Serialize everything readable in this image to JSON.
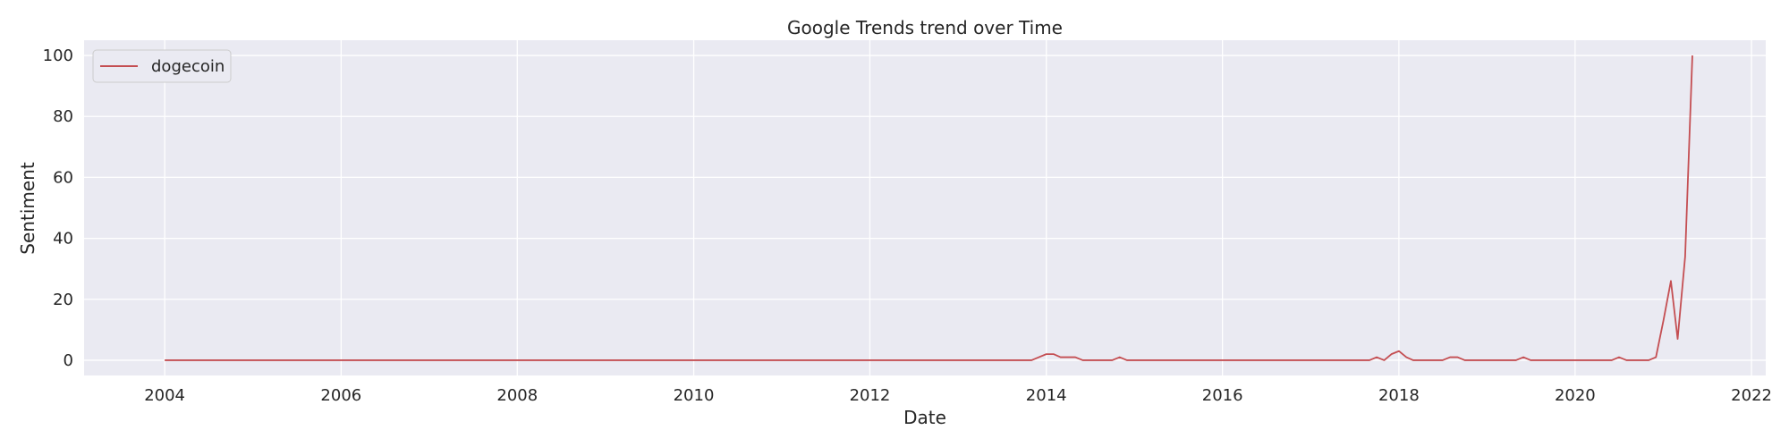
{
  "chart_data": {
    "type": "line",
    "title": "Google Trends trend over Time",
    "xlabel": "Date",
    "ylabel": "Sentiment",
    "xlim": [
      "2003-02-01",
      "2022-03-01"
    ],
    "ylim": [
      -5,
      105
    ],
    "x_ticks": [
      "2004",
      "2006",
      "2008",
      "2010",
      "2012",
      "2014",
      "2016",
      "2018",
      "2020",
      "2022"
    ],
    "y_ticks": [
      0,
      20,
      40,
      60,
      80,
      100
    ],
    "grid": true,
    "legend": "top-left",
    "colors": {
      "background": "#eaeaf2",
      "grid": "#ffffff",
      "line": "#c44e52"
    },
    "series": [
      {
        "name": "dogecoin",
        "points": [
          [
            "2004-01-01",
            0
          ],
          [
            "2013-11-01",
            0
          ],
          [
            "2013-12-01",
            1
          ],
          [
            "2014-01-01",
            2
          ],
          [
            "2014-02-01",
            2
          ],
          [
            "2014-03-01",
            1
          ],
          [
            "2014-05-01",
            1
          ],
          [
            "2014-06-01",
            0
          ],
          [
            "2014-10-01",
            0
          ],
          [
            "2014-11-01",
            1
          ],
          [
            "2014-12-01",
            0
          ],
          [
            "2017-09-01",
            0
          ],
          [
            "2017-10-01",
            1
          ],
          [
            "2017-11-01",
            0
          ],
          [
            "2017-12-01",
            2
          ],
          [
            "2018-01-01",
            3
          ],
          [
            "2018-02-01",
            1
          ],
          [
            "2018-03-01",
            0
          ],
          [
            "2018-07-01",
            0
          ],
          [
            "2018-08-01",
            1
          ],
          [
            "2018-09-01",
            1
          ],
          [
            "2018-10-01",
            0
          ],
          [
            "2019-05-01",
            0
          ],
          [
            "2019-06-01",
            1
          ],
          [
            "2019-07-01",
            0
          ],
          [
            "2020-06-01",
            0
          ],
          [
            "2020-07-01",
            1
          ],
          [
            "2020-08-01",
            0
          ],
          [
            "2020-11-01",
            0
          ],
          [
            "2020-12-01",
            1
          ],
          [
            "2021-01-01",
            13
          ],
          [
            "2021-02-01",
            26
          ],
          [
            "2021-03-01",
            7
          ],
          [
            "2021-04-01",
            34
          ],
          [
            "2021-05-01",
            100
          ]
        ]
      }
    ]
  }
}
